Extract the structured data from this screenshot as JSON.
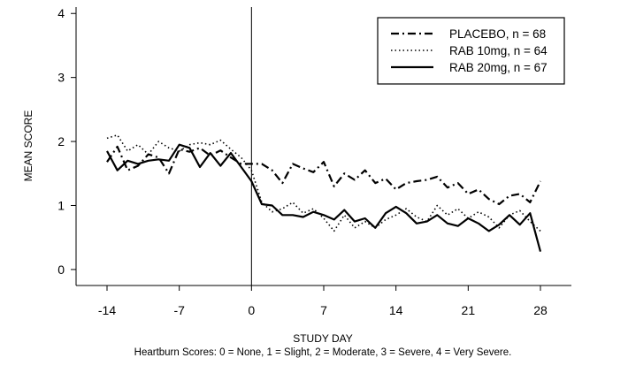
{
  "chart_data": {
    "type": "line",
    "xlabel": "STUDY DAY",
    "ylabel": "MEAN SCORE",
    "footnote": "Heartburn Scores: 0 = None, 1 = Slight, 2 = Moderate, 3 = Severe, 4 = Very Severe.",
    "xlim": [
      -17,
      31
    ],
    "ylim": [
      -0.25,
      4.1
    ],
    "xticks": [
      -14,
      -7,
      0,
      7,
      14,
      21,
      28
    ],
    "xtick_labels": [
      "-14",
      "-7",
      "0",
      "7",
      "14",
      "21",
      "28"
    ],
    "yticks": [
      0,
      1,
      2,
      3,
      4
    ],
    "ytick_labels": [
      "0",
      "1",
      "2",
      "3",
      "4"
    ],
    "reference_line_x": 0,
    "grid": false,
    "legend_position": "top-right",
    "series": [
      {
        "name": "PLACEBO, n = 68",
        "line_style": "dashdot",
        "x": [
          -14,
          -13,
          -12,
          -11,
          -10,
          -9,
          -8,
          -7,
          -6,
          -5,
          -4,
          -3,
          -2,
          -1,
          0,
          1,
          2,
          3,
          4,
          5,
          6,
          7,
          8,
          9,
          10,
          11,
          12,
          13,
          14,
          15,
          16,
          17,
          18,
          19,
          20,
          21,
          22,
          23,
          24,
          25,
          26,
          27,
          28
        ],
        "values": [
          1.68,
          1.92,
          1.55,
          1.62,
          1.8,
          1.75,
          1.5,
          1.88,
          1.84,
          1.9,
          1.78,
          1.86,
          1.75,
          1.65,
          1.65,
          1.65,
          1.55,
          1.35,
          1.65,
          1.58,
          1.52,
          1.68,
          1.3,
          1.5,
          1.4,
          1.55,
          1.35,
          1.42,
          1.25,
          1.35,
          1.38,
          1.4,
          1.45,
          1.28,
          1.35,
          1.18,
          1.25,
          1.1,
          1.02,
          1.15,
          1.18,
          1.05,
          1.38
        ]
      },
      {
        "name": "RAB 10mg, n = 64",
        "line_style": "dotted",
        "x": [
          -14,
          -13,
          -12,
          -11,
          -10,
          -9,
          -8,
          -7,
          -6,
          -5,
          -4,
          -3,
          -2,
          -1,
          0,
          1,
          2,
          3,
          4,
          5,
          6,
          7,
          8,
          9,
          10,
          11,
          12,
          13,
          14,
          15,
          16,
          17,
          18,
          19,
          20,
          21,
          22,
          23,
          24,
          25,
          26,
          27,
          28
        ],
        "values": [
          2.05,
          2.1,
          1.85,
          1.95,
          1.8,
          2.0,
          1.9,
          1.85,
          1.95,
          1.98,
          1.95,
          2.02,
          1.88,
          1.75,
          1.55,
          1.05,
          0.9,
          0.95,
          1.05,
          0.88,
          0.95,
          0.8,
          0.6,
          0.85,
          0.65,
          0.75,
          0.65,
          0.78,
          0.85,
          0.95,
          0.82,
          0.75,
          1.0,
          0.85,
          0.95,
          0.8,
          0.9,
          0.82,
          0.65,
          0.85,
          0.92,
          0.75,
          0.6
        ]
      },
      {
        "name": "RAB 20mg, n = 67",
        "line_style": "solid",
        "x": [
          -14,
          -13,
          -12,
          -11,
          -10,
          -9,
          -8,
          -7,
          -6,
          -5,
          -4,
          -3,
          -2,
          -1,
          0,
          1,
          2,
          3,
          4,
          5,
          6,
          7,
          8,
          9,
          10,
          11,
          12,
          13,
          14,
          15,
          16,
          17,
          18,
          19,
          20,
          21,
          22,
          23,
          24,
          25,
          26,
          27,
          28
        ],
        "values": [
          1.85,
          1.55,
          1.7,
          1.65,
          1.7,
          1.72,
          1.7,
          1.95,
          1.9,
          1.6,
          1.82,
          1.62,
          1.82,
          1.6,
          1.38,
          1.02,
          1.0,
          0.85,
          0.85,
          0.82,
          0.9,
          0.85,
          0.78,
          0.93,
          0.75,
          0.8,
          0.65,
          0.88,
          0.98,
          0.88,
          0.72,
          0.75,
          0.85,
          0.72,
          0.68,
          0.8,
          0.72,
          0.6,
          0.7,
          0.85,
          0.7,
          0.88,
          0.28
        ]
      }
    ]
  }
}
